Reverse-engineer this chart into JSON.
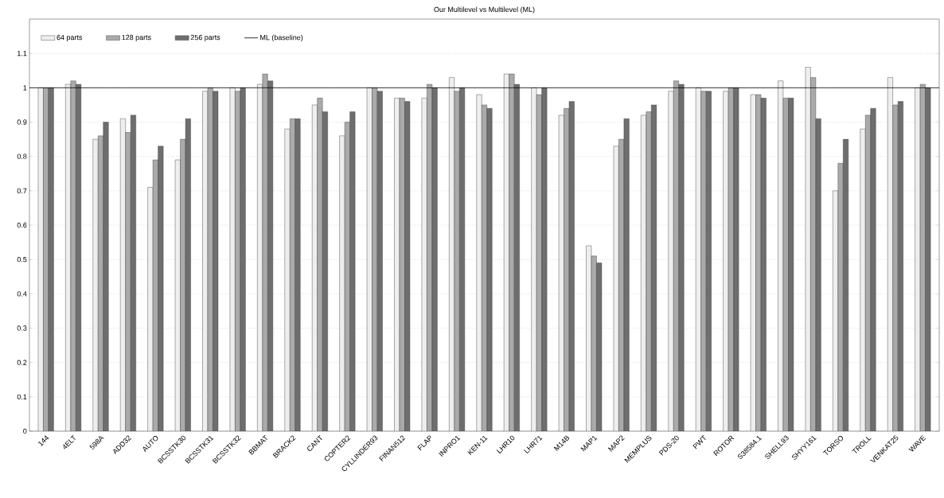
{
  "chart_data": {
    "type": "bar",
    "title": "Our Multilevel vs Multilevel (ML)",
    "categories": [
      "144",
      "4ELT",
      "598A",
      "ADD32",
      "AUTO",
      "BCSSTK30",
      "BCSSTK31",
      "BCSSTK32",
      "BBMAT",
      "BRACK2",
      "CANT",
      "COPTER2",
      "CYLLINDER93",
      "FINAN512",
      "FLAP",
      "INPRO1",
      "KEN-11",
      "LHR10",
      "LHR71",
      "M14B",
      "MAP1",
      "MAP2",
      "MEMPLUS",
      "PDS-20",
      "PWT",
      "ROTOR",
      "S38584.1",
      "SHELL93",
      "SHYY161",
      "TORSO",
      "TROLL",
      "VENKAT25",
      "WAVE"
    ],
    "series": [
      {
        "name": "64 parts",
        "color": "#eeeeee",
        "values": [
          1.0,
          1.01,
          0.85,
          0.91,
          0.71,
          0.79,
          0.99,
          1.0,
          1.01,
          0.88,
          0.95,
          0.86,
          1.0,
          0.97,
          0.97,
          1.03,
          0.98,
          1.04,
          1.0,
          0.92,
          0.54,
          0.83,
          0.92,
          0.99,
          1.0,
          0.99,
          0.98,
          1.02,
          1.06,
          0.7,
          0.88,
          1.03,
          1.0
        ]
      },
      {
        "name": "128 parts",
        "color": "#aaaaaa",
        "values": [
          1.0,
          1.02,
          0.86,
          0.87,
          0.79,
          0.85,
          1.0,
          0.99,
          1.04,
          0.91,
          0.97,
          0.9,
          1.0,
          0.97,
          1.01,
          0.99,
          0.95,
          1.04,
          0.98,
          0.94,
          0.51,
          0.85,
          0.93,
          1.02,
          0.99,
          1.0,
          0.98,
          0.97,
          1.03,
          0.78,
          0.92,
          0.95,
          1.01
        ]
      },
      {
        "name": "256 parts",
        "color": "#6e6e6e",
        "values": [
          1.0,
          1.01,
          0.9,
          0.92,
          0.83,
          0.91,
          0.99,
          1.0,
          1.02,
          0.91,
          0.93,
          0.93,
          0.99,
          0.96,
          1.0,
          1.0,
          0.94,
          1.01,
          1.0,
          0.96,
          0.49,
          0.91,
          0.95,
          1.01,
          0.99,
          1.0,
          0.97,
          0.97,
          0.91,
          0.85,
          0.94,
          0.96,
          1.0
        ]
      }
    ],
    "ylim": [
      0,
      1.2
    ],
    "yticks": [
      0,
      0.1,
      0.2,
      0.3,
      0.4,
      0.5,
      0.6,
      0.7,
      0.8,
      0.9,
      1,
      1.1
    ],
    "grid": "y",
    "legend": "top left",
    "ref_lines": [
      {
        "axis": "y",
        "value": 1,
        "label": "ML (baseline)",
        "color": "#000000"
      }
    ]
  }
}
